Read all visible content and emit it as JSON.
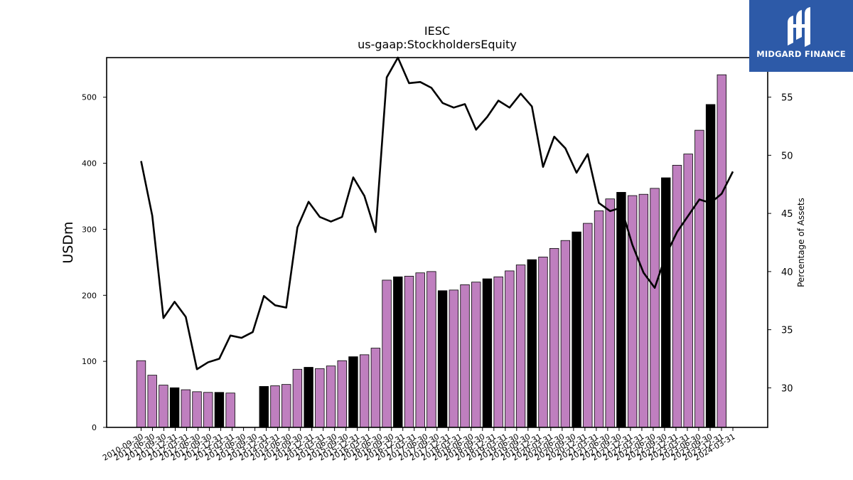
{
  "chart_data": {
    "type": "bar",
    "title": "IESC",
    "subtitle": "us-gaap:StockholdersEquity",
    "ylabel": "USDm",
    "y2label": "Percentage of Assets",
    "ylim": [
      0,
      560
    ],
    "y2lim": [
      26.6,
      58.4
    ],
    "yticks": [
      0,
      100,
      200,
      300,
      400,
      500
    ],
    "y2ticks": [
      30,
      35,
      40,
      45,
      50,
      55
    ],
    "colors": {
      "bar": "#bf7fbf",
      "bar_highlight": "#000000",
      "line": "#000000"
    },
    "categories": [
      "2010-09-30",
      "2010-12-31",
      "2011-03-31",
      "2011-06-30",
      "2011-09-30",
      "2011-12-31",
      "2012-03-31",
      "2012-06-30",
      "2012-09-30",
      "2012-12-31",
      "2013-03-31",
      "2013-06-30",
      "2013-09-30",
      "2013-12-31",
      "2014-03-31",
      "2014-06-30",
      "2014-09-30",
      "2014-12-31",
      "2015-03-31",
      "2015-06-30",
      "2015-09-30",
      "2015-12-31",
      "2016-03-31",
      "2016-06-30",
      "2016-09-30",
      "2016-12-31",
      "2017-03-31",
      "2017-06-30",
      "2017-09-30",
      "2017-12-31",
      "2018-03-31",
      "2018-06-30",
      "2018-09-30",
      "2018-12-31",
      "2019-03-31",
      "2019-06-30",
      "2019-09-30",
      "2019-12-31",
      "2020-03-31",
      "2020-06-30",
      "2020-09-30",
      "2020-12-31",
      "2021-03-31",
      "2021-06-30",
      "2021-09-30",
      "2021-12-31",
      "2022-03-31",
      "2022-06-30",
      "2022-09-30",
      "2022-12-31",
      "2023-03-31",
      "2023-06-30",
      "2023-09-30",
      "2023-12-31",
      "2024-03-31"
    ],
    "tick_labels": [
      "2010-09-30",
      "2011-06-30",
      "2011-09-30",
      "2011-12-31",
      "2012-03-31",
      "2012-06-30",
      "2012-09-30",
      "2012-12-31",
      "2013-03-31",
      "2013-06-30",
      "2013-09-30",
      "2013-12-31",
      "2014-03-31",
      "2014-06-30",
      "2014-09-30",
      "2014-12-31",
      "2015-03-31",
      "2015-06-30",
      "2015-09-30",
      "2015-12-31",
      "2016-03-31",
      "2016-06-30",
      "2016-09-30",
      "2016-12-31",
      "2017-03-31",
      "2017-06-30",
      "2017-09-30",
      "2017-12-31",
      "2018-03-31",
      "2018-06-30",
      "2018-09-30",
      "2018-12-31",
      "2019-03-31",
      "2019-06-30",
      "2019-09-30",
      "2019-12-31",
      "2020-03-31",
      "2020-06-30",
      "2020-09-30",
      "2020-12-31",
      "2021-03-31",
      "2021-06-30",
      "2021-09-30",
      "2021-12-31",
      "2022-03-31",
      "2022-06-30",
      "2022-09-30",
      "2022-12-31",
      "2023-03-31",
      "2023-06-30",
      "2023-09-30",
      "2023-12-31",
      "2024-03-31"
    ],
    "series": [
      {
        "type": "bar",
        "values": [
          101,
          79,
          64,
          60,
          57,
          54,
          53,
          53,
          52,
          null,
          null,
          62,
          63,
          65,
          88,
          91,
          89,
          93,
          101,
          107,
          110,
          120,
          223,
          228,
          229,
          234,
          236,
          207,
          208,
          216,
          220,
          225,
          228,
          237,
          246,
          254,
          258,
          271,
          283,
          296,
          309,
          328,
          346,
          356,
          351,
          353,
          362,
          378,
          397,
          414,
          450,
          489,
          534,
          null,
          null
        ],
        "highlight": [
          false,
          false,
          false,
          true,
          false,
          false,
          false,
          true,
          false,
          false,
          false,
          true,
          false,
          false,
          false,
          true,
          false,
          false,
          false,
          true,
          false,
          false,
          false,
          true,
          false,
          false,
          false,
          true,
          false,
          false,
          false,
          true,
          false,
          false,
          false,
          true,
          false,
          false,
          false,
          true,
          false,
          false,
          false,
          true,
          false,
          false,
          false,
          true,
          false,
          false,
          false,
          true,
          false,
          false,
          false
        ]
      },
      {
        "type": "line",
        "values": [
          49.5,
          44.8,
          36.0,
          37.4,
          36.1,
          31.6,
          32.2,
          32.5,
          34.5,
          34.3,
          34.8,
          37.9,
          37.1,
          36.9,
          43.8,
          46.0,
          44.7,
          44.3,
          44.7,
          48.1,
          46.5,
          43.4,
          56.7,
          58.4,
          56.2,
          56.3,
          55.8,
          54.5,
          54.1,
          54.4,
          52.2,
          53.3,
          54.7,
          54.1,
          55.3,
          54.2,
          49.0,
          51.6,
          50.6,
          48.5,
          50.1,
          45.9,
          45.2,
          45.5,
          42.3,
          39.9,
          38.6,
          41.4,
          43.4,
          44.8,
          46.2,
          45.9,
          46.7,
          48.6,
          null
        ]
      }
    ]
  },
  "logo": {
    "name": "MIDGARD FINANCE"
  }
}
